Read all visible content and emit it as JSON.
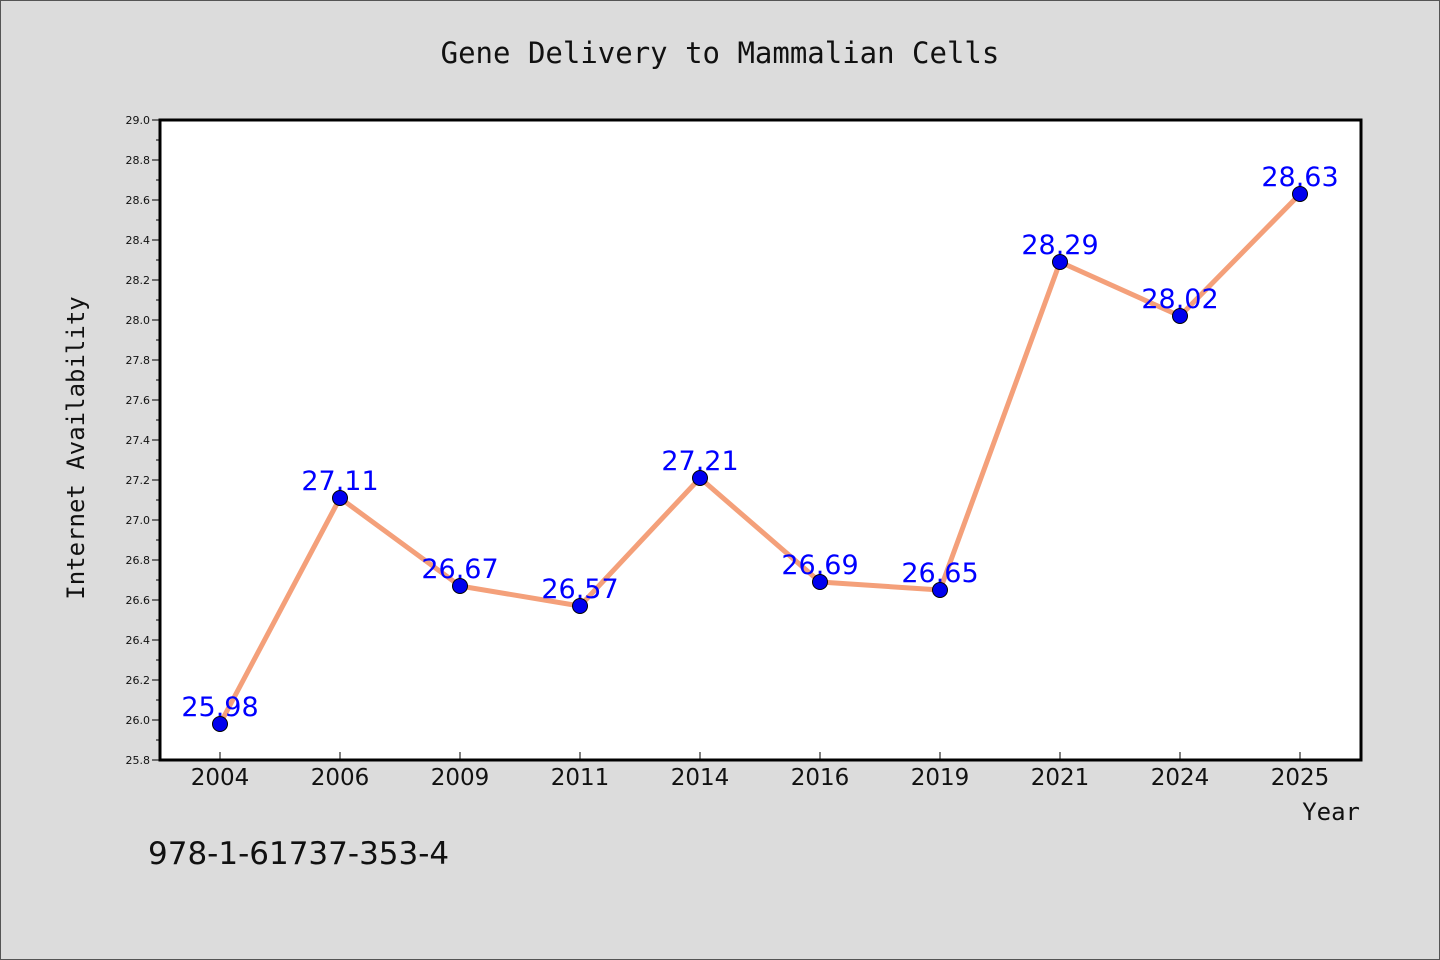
{
  "chart_data": {
    "type": "line",
    "title": "Gene Delivery to Mammalian Cells",
    "xlabel": "Year",
    "ylabel": "Internet Availability",
    "categories": [
      "2004",
      "2006",
      "2009",
      "2011",
      "2014",
      "2016",
      "2019",
      "2021",
      "2024",
      "2025"
    ],
    "series": [
      {
        "values": [
          25.98,
          27.11,
          26.67,
          26.57,
          27.21,
          26.69,
          26.65,
          28.29,
          28.02,
          28.63
        ],
        "labels": [
          "25.98",
          "27.11",
          "26.67",
          "26.57",
          "27.21",
          "26.69",
          "26.65",
          "28.29",
          "28.02",
          "28.63"
        ]
      }
    ],
    "ylim": [
      25.8,
      29.0
    ],
    "yticks": [
      "25.8",
      "26.0",
      "26.2",
      "26.4",
      "26.6",
      "26.8",
      "27.0",
      "27.2",
      "27.4",
      "27.6",
      "27.8",
      "28.0",
      "28.2",
      "28.4",
      "28.6",
      "28.8",
      "29.0"
    ],
    "grid": false,
    "colors": {
      "line": "#f4a07a",
      "marker": "#0000ee",
      "label": "#0000ff",
      "background": "#dcdcdc",
      "plot_background": "#ffffff"
    }
  },
  "annotation": "978-1-61737-353-4"
}
